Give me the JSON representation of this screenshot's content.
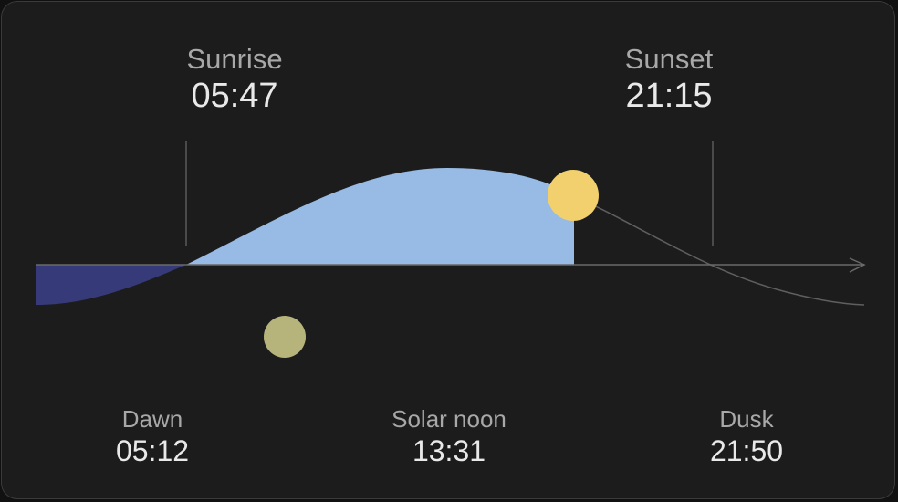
{
  "sunrise": {
    "label": "Sunrise",
    "time": "05:47"
  },
  "sunset": {
    "label": "Sunset",
    "time": "21:15"
  },
  "dawn": {
    "label": "Dawn",
    "time": "05:12"
  },
  "solar_noon": {
    "label": "Solar noon",
    "time": "13:31"
  },
  "dusk": {
    "label": "Dusk",
    "time": "21:50"
  },
  "colors": {
    "card_background": "#1c1c1c",
    "day_fill": "#97bbe5",
    "night_fill": "#363a78",
    "sun": "#f2d06d",
    "moon": "#b6b37b",
    "curve_line": "#6a6a6a",
    "label_text": "#a8a8a8",
    "value_text": "#e9e9e9"
  },
  "icons": {
    "sun": "sun-icon",
    "moon": "moon-icon",
    "axis_arrow": "arrow-right-icon"
  }
}
